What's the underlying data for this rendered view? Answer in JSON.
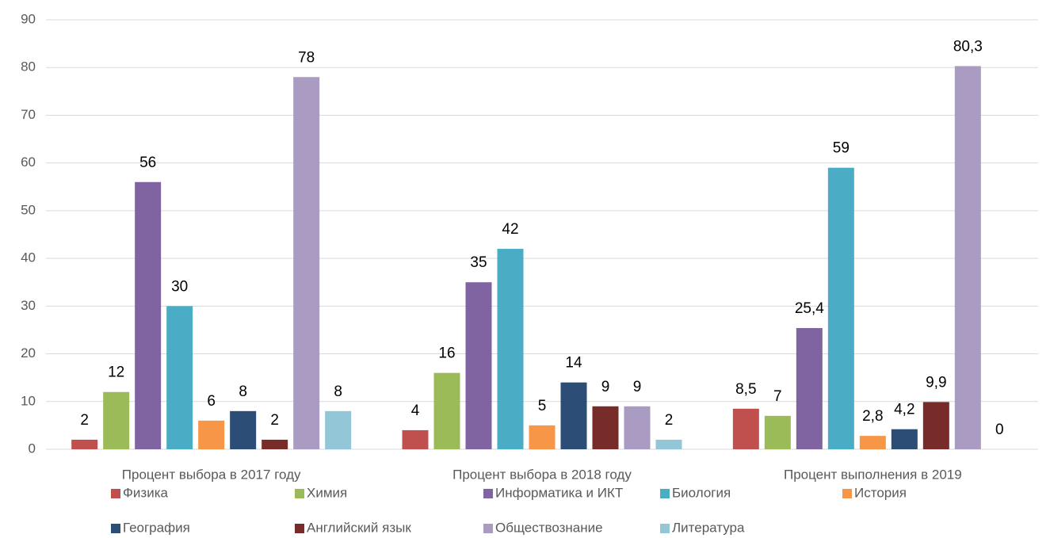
{
  "chart_data": {
    "type": "bar",
    "categories": [
      "Процент выбора в 2017 году",
      "Процент выбора в 2018 году",
      "Процент выполнения в 2019"
    ],
    "series": [
      {
        "name": "Физика",
        "color": "#c0504d",
        "values": [
          2,
          4,
          8.5
        ],
        "value_labels": [
          "2",
          "4",
          "8,5"
        ]
      },
      {
        "name": "Химия",
        "color": "#9bbb59",
        "values": [
          12,
          16,
          7
        ]
      },
      {
        "name": "Информатика и ИКТ",
        "color": "#8064a2",
        "values": [
          56,
          35,
          25.4
        ],
        "value_labels": [
          "56",
          "35",
          "25,4"
        ]
      },
      {
        "name": "Биология",
        "color": "#4bacc6",
        "values": [
          30,
          42,
          59
        ]
      },
      {
        "name": "История",
        "color": "#f79646",
        "values": [
          6,
          5,
          2.8
        ],
        "value_labels": [
          "6",
          "5",
          "2,8"
        ]
      },
      {
        "name": "География",
        "color": "#2c4d75",
        "values": [
          8,
          14,
          4.2
        ],
        "value_labels": [
          "8",
          "14",
          "4,2"
        ]
      },
      {
        "name": "Английский язык",
        "color": "#772c2a",
        "values": [
          2,
          9,
          9.9
        ],
        "value_labels": [
          "2",
          "9",
          "9,9"
        ]
      },
      {
        "name": "Обществознание",
        "color": "#a99bc1",
        "values": [
          78,
          9,
          80.3
        ],
        "value_labels": [
          "78",
          "9",
          "80,3"
        ]
      },
      {
        "name": "Литература",
        "color": "#93c6d6",
        "values": [
          8,
          2,
          0
        ]
      }
    ],
    "ylim": [
      0,
      90
    ],
    "yticks": [
      0,
      10,
      20,
      30,
      40,
      50,
      60,
      70,
      80,
      90
    ],
    "grid": true,
    "legend": "bottom"
  }
}
